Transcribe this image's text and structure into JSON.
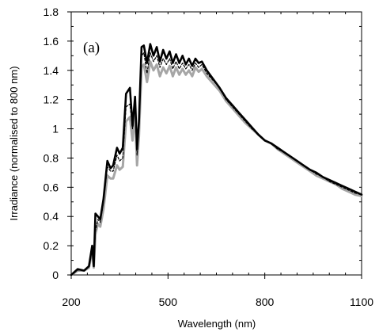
{
  "chart_data": {
    "type": "line",
    "title": "",
    "panel_label": "(a)",
    "xlabel": "Wavelength (nm)",
    "ylabel": "Irradiance (normalised to 800 nm)",
    "xlim": [
      200,
      1100
    ],
    "ylim": [
      0,
      1.8
    ],
    "xticks": [
      200,
      500,
      800,
      1100
    ],
    "yticks": [
      0,
      0.2,
      0.4,
      0.6,
      0.8,
      1,
      1.2,
      1.4,
      1.6,
      1.8
    ],
    "xtick_labels": [
      "200",
      "500",
      "800",
      "1100"
    ],
    "ytick_labels": [
      "0",
      "0.2",
      "0.4",
      "0.6",
      "0.8",
      "1",
      "1.2",
      "1.4",
      "1.6",
      "1.8"
    ],
    "grid": false,
    "legend": "none",
    "series": [
      {
        "color": "#a6a6a6",
        "stroke": "solid",
        "x": [
          200,
          220,
          240,
          255,
          265,
          270,
          275,
          283,
          290,
          300,
          312,
          322,
          330,
          342,
          350,
          360,
          370,
          382,
          390,
          398,
          404,
          410,
          418,
          425,
          435,
          445,
          455,
          465,
          475,
          485,
          495,
          505,
          515,
          525,
          535,
          545,
          555,
          565,
          575,
          585,
          595,
          605,
          620,
          640,
          660,
          680,
          700,
          720,
          740,
          760,
          780,
          800,
          820,
          840,
          860,
          880,
          900,
          920,
          940,
          960,
          980,
          1000,
          1020,
          1040,
          1060,
          1080,
          1100
        ],
        "y": [
          0,
          0.03,
          0.03,
          0.05,
          0.17,
          0.05,
          0.28,
          0.35,
          0.33,
          0.45,
          0.68,
          0.66,
          0.66,
          0.75,
          0.72,
          0.74,
          1.05,
          1.08,
          0.92,
          1.1,
          0.75,
          0.95,
          1.42,
          1.44,
          1.32,
          1.46,
          1.4,
          1.44,
          1.36,
          1.42,
          1.38,
          1.43,
          1.36,
          1.42,
          1.37,
          1.41,
          1.37,
          1.4,
          1.36,
          1.42,
          1.39,
          1.41,
          1.36,
          1.31,
          1.26,
          1.19,
          1.14,
          1.09,
          1.04,
          1.0,
          0.96,
          0.92,
          0.9,
          0.86,
          0.83,
          0.8,
          0.77,
          0.74,
          0.71,
          0.68,
          0.66,
          0.64,
          0.62,
          0.59,
          0.57,
          0.55,
          0.54
        ]
      },
      {
        "color": "#000000",
        "stroke": "dashed",
        "x": [
          200,
          220,
          240,
          255,
          265,
          270,
          275,
          283,
          290,
          300,
          312,
          322,
          330,
          342,
          350,
          360,
          370,
          382,
          390,
          398,
          404,
          410,
          418,
          425,
          435,
          445,
          455,
          465,
          475,
          485,
          495,
          505,
          515,
          525,
          535,
          545,
          555,
          565,
          575,
          585,
          595,
          605,
          620,
          640,
          660,
          680,
          700,
          720,
          740,
          760,
          780,
          800,
          820,
          840,
          860,
          880,
          900,
          920,
          940,
          960,
          980,
          1000,
          1020,
          1040,
          1060,
          1080,
          1100
        ],
        "y": [
          0,
          0.035,
          0.03,
          0.06,
          0.18,
          0.06,
          0.3,
          0.38,
          0.36,
          0.5,
          0.74,
          0.71,
          0.71,
          0.82,
          0.78,
          0.8,
          1.15,
          1.17,
          1.0,
          1.18,
          0.82,
          1.02,
          1.5,
          1.52,
          1.38,
          1.52,
          1.46,
          1.5,
          1.42,
          1.48,
          1.44,
          1.48,
          1.41,
          1.46,
          1.41,
          1.45,
          1.41,
          1.44,
          1.4,
          1.45,
          1.42,
          1.44,
          1.38,
          1.33,
          1.28,
          1.2,
          1.15,
          1.1,
          1.05,
          1.0,
          0.96,
          0.92,
          0.9,
          0.86,
          0.84,
          0.81,
          0.78,
          0.75,
          0.72,
          0.69,
          0.67,
          0.64,
          0.62,
          0.6,
          0.58,
          0.56,
          0.55
        ]
      },
      {
        "color": "#000000",
        "stroke": "solid",
        "x": [
          200,
          220,
          240,
          255,
          265,
          270,
          275,
          283,
          290,
          300,
          312,
          322,
          330,
          342,
          350,
          360,
          370,
          382,
          390,
          398,
          404,
          410,
          418,
          425,
          435,
          445,
          455,
          465,
          475,
          485,
          495,
          505,
          515,
          525,
          535,
          545,
          555,
          565,
          575,
          585,
          595,
          605,
          620,
          640,
          660,
          680,
          700,
          720,
          740,
          760,
          780,
          800,
          820,
          840,
          860,
          880,
          900,
          920,
          940,
          960,
          980,
          1000,
          1020,
          1040,
          1060,
          1080,
          1100
        ],
        "y": [
          0,
          0.04,
          0.03,
          0.06,
          0.2,
          0.06,
          0.42,
          0.4,
          0.38,
          0.52,
          0.78,
          0.73,
          0.75,
          0.87,
          0.83,
          0.87,
          1.24,
          1.28,
          1.02,
          1.22,
          0.86,
          1.05,
          1.56,
          1.57,
          1.45,
          1.58,
          1.5,
          1.56,
          1.46,
          1.54,
          1.48,
          1.53,
          1.45,
          1.51,
          1.45,
          1.5,
          1.44,
          1.48,
          1.43,
          1.48,
          1.45,
          1.46,
          1.4,
          1.34,
          1.28,
          1.21,
          1.16,
          1.11,
          1.06,
          1.01,
          0.96,
          0.92,
          0.9,
          0.87,
          0.84,
          0.81,
          0.78,
          0.75,
          0.72,
          0.7,
          0.67,
          0.65,
          0.63,
          0.61,
          0.59,
          0.57,
          0.55
        ]
      }
    ]
  }
}
